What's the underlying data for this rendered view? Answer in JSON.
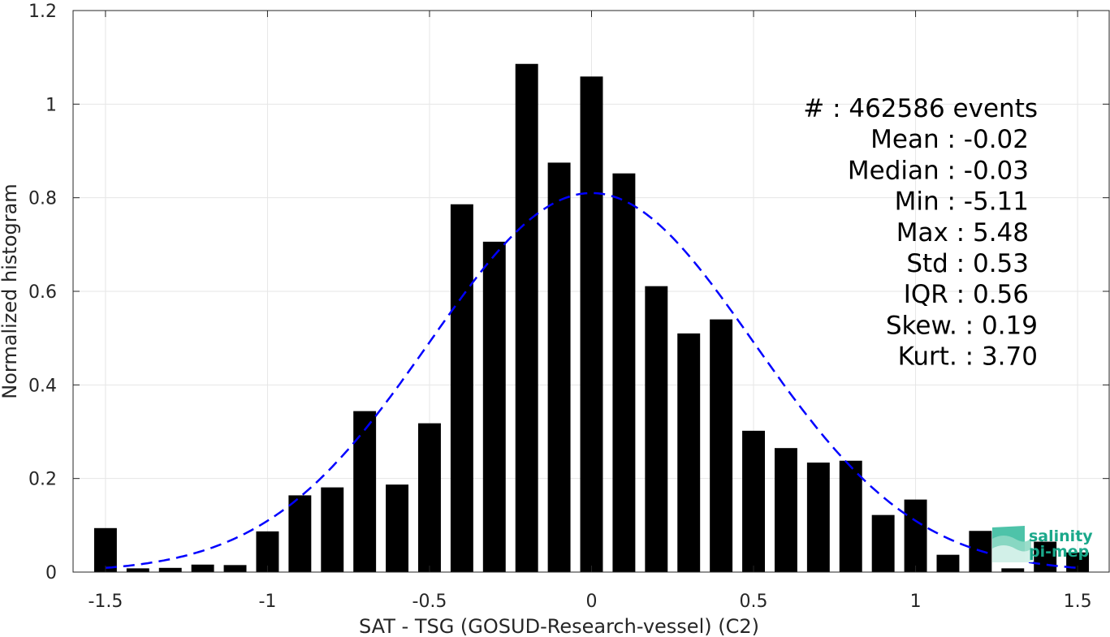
{
  "chart_data": {
    "type": "bar",
    "title": "",
    "xlabel": "SAT - TSG (GOSUD-Research-vessel) (C2)",
    "ylabel": "Normalized histogram",
    "xlim": [
      -1.6,
      1.6
    ],
    "ylim": [
      0,
      1.2
    ],
    "xticks": [
      -1.5,
      -1,
      -0.5,
      0,
      0.5,
      1,
      1.5
    ],
    "xtick_labels": [
      "-1.5",
      "-1",
      "-0.5",
      "0",
      "0.5",
      "1",
      "1.5"
    ],
    "yticks": [
      0,
      0.2,
      0.4,
      0.6,
      0.8,
      1,
      1.2
    ],
    "ytick_labels": [
      "0",
      "0.2",
      "0.4",
      "0.6",
      "0.8",
      "1",
      "1.2"
    ],
    "grid": true,
    "bar_color": "#000000",
    "bar_width": 0.07,
    "categories": [
      -1.5,
      -1.4,
      -1.3,
      -1.2,
      -1.1,
      -1.0,
      -0.9,
      -0.8,
      -0.7,
      -0.6,
      -0.5,
      -0.4,
      -0.3,
      -0.2,
      -0.1,
      0.0,
      0.1,
      0.2,
      0.3,
      0.4,
      0.5,
      0.6,
      0.7,
      0.8,
      0.9,
      1.0,
      1.1,
      1.2,
      1.3,
      1.4,
      1.5
    ],
    "values": [
      0.094,
      0.008,
      0.009,
      0.016,
      0.015,
      0.087,
      0.164,
      0.181,
      0.344,
      0.187,
      0.318,
      0.786,
      0.706,
      1.086,
      0.875,
      1.059,
      0.852,
      0.611,
      0.51,
      0.54,
      0.302,
      0.265,
      0.234,
      0.238,
      0.122,
      0.155,
      0.037,
      0.088,
      0.008,
      0.065,
      0.042
    ],
    "fit": {
      "type": "gaussian",
      "mean": 0.0,
      "sigma": 0.5,
      "peak": 0.81,
      "color": "#0000ff",
      "style": "dashed"
    }
  },
  "stats": [
    {
      "label": "#  : 462586 events"
    },
    {
      "label": "Mean : -0.02"
    },
    {
      "label": "Median : -0.03"
    },
    {
      "label": "Min : -5.11"
    },
    {
      "label": "Max : 5.48"
    },
    {
      "label": "Std : 0.53"
    },
    {
      "label": "IQR : 0.56"
    },
    {
      "label": "Skew. : 0.19"
    },
    {
      "label": "Kurt. : 3.70"
    }
  ],
  "logo": {
    "line1": "salinity",
    "line2": "pi-mep",
    "color": "#1aa88a"
  }
}
